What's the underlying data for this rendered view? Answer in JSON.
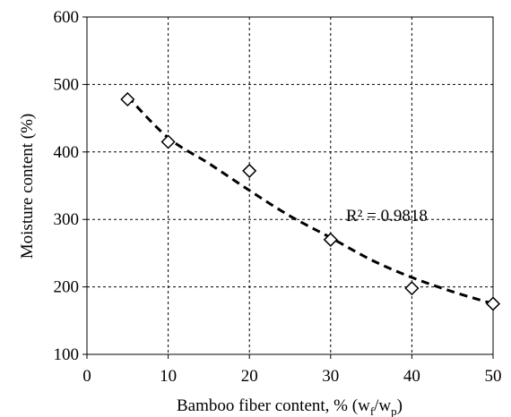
{
  "chart_data": {
    "type": "scatter",
    "xlabel": "Bamboo fiber content, % (w_f/w_p)",
    "xlabel_parts": {
      "main": "Bamboo fiber content, % (w",
      "sub1": "f",
      "mid": "/w",
      "sub2": "p",
      "end": ")"
    },
    "ylabel": "Moisture content (%)",
    "xlim": [
      0,
      50
    ],
    "ylim": [
      100,
      600
    ],
    "xticks": [
      0,
      10,
      20,
      30,
      40,
      50
    ],
    "yticks": [
      100,
      200,
      300,
      400,
      500,
      600
    ],
    "grid": true,
    "series": [
      {
        "marker": "diamond",
        "x": [
          5,
          10,
          20,
          30,
          40,
          50
        ],
        "y": [
          478,
          415,
          372,
          270,
          198,
          175
        ]
      }
    ],
    "trendline": {
      "style": "dashed",
      "x": [
        5,
        10,
        15,
        20,
        25,
        30,
        35,
        40,
        45,
        50
      ],
      "y": [
        482,
        421,
        383,
        343,
        305,
        273,
        240,
        214,
        193,
        175
      ]
    },
    "annotation": "R² = 0.9818",
    "colors": {
      "axis": "#000000",
      "grid": "#000000",
      "marker": "#000000",
      "trendline": "#000000"
    }
  }
}
